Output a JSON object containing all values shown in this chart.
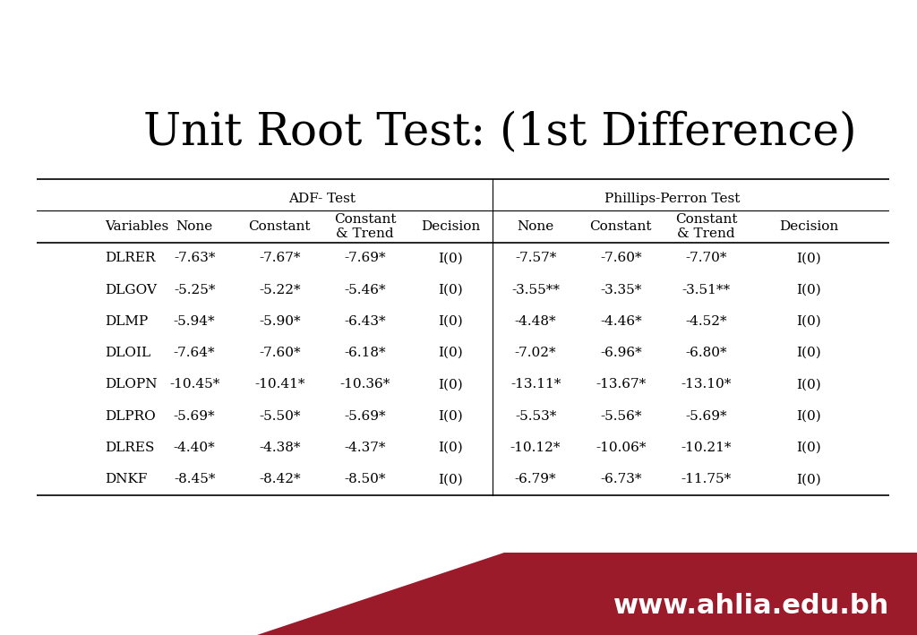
{
  "title": "Unit Root Test: (1st Difference)",
  "title_fontsize": 36,
  "background_color": "#ffffff",
  "footer_color": "#9b1b2a",
  "footer_text": "www.ahlia.edu.bh",
  "footer_text_color": "#ffffff",
  "footer_fontsize": 22,
  "section_headers": [
    "ADF- Test",
    "Phillips-Perron Test"
  ],
  "col_headers": [
    "Variables",
    "None",
    "Constant",
    "Constant\n& Trend",
    "Decision",
    "None",
    "Constant",
    "Constant\n& Trend",
    "Decision"
  ],
  "rows": [
    [
      "DLRER",
      "-7.63*",
      "-7.67*",
      "-7.69*",
      "I(0)",
      "-7.57*",
      "-7.60*",
      "-7.70*",
      "I(0)"
    ],
    [
      "DLGOV",
      "-5.25*",
      "-5.22*",
      "-5.46*",
      "I(0)",
      "-3.55**",
      "-3.35*",
      "-3.51**",
      "I(0)"
    ],
    [
      "DLMP",
      "-5.94*",
      "-5.90*",
      "-6.43*",
      "I(0)",
      "-4.48*",
      "-4.46*",
      "-4.52*",
      "I(0)"
    ],
    [
      "DLOIL",
      "-7.64*",
      "-7.60*",
      "-6.18*",
      "I(0)",
      "-7.02*",
      "-6.96*",
      "-6.80*",
      "I(0)"
    ],
    [
      "DLOPN",
      "-10.45*",
      "-10.41*",
      "-10.36*",
      "I(0)",
      "-13.11*",
      "-13.67*",
      "-13.10*",
      "I(0)"
    ],
    [
      "DLPRO",
      "-5.69*",
      "-5.50*",
      "-5.69*",
      "I(0)",
      "-5.53*",
      "-5.56*",
      "-5.69*",
      "I(0)"
    ],
    [
      "DLRES",
      "-4.40*",
      "-4.38*",
      "-4.37*",
      "I(0)",
      "-10.12*",
      "-10.06*",
      "-10.21*",
      "I(0)"
    ],
    [
      "DNKF",
      "-8.45*",
      "-8.42*",
      "-8.50*",
      "I(0)",
      "-6.79*",
      "-6.73*",
      "-11.75*",
      "I(0)"
    ]
  ],
  "table_text_fontsize": 11,
  "header_fontsize": 11,
  "section_header_fontsize": 11
}
